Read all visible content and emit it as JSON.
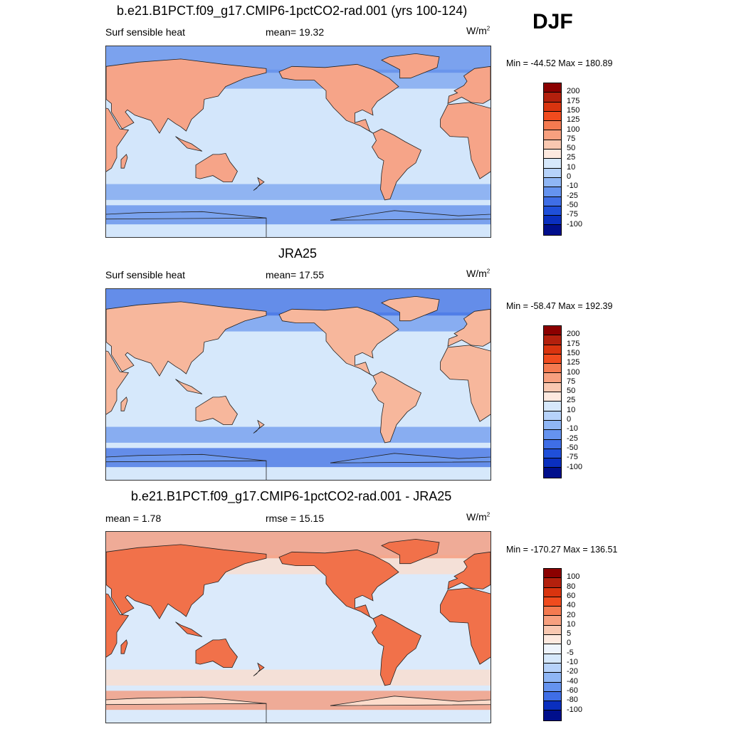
{
  "season": "DJF",
  "panels": [
    {
      "title": "b.e21.B1PCT.f09_g17.CMIP6-1pctCO2-rad.001 (yrs 100-124)",
      "left_label": "Surf sensible heat",
      "center_label": "mean=  19.32",
      "units": "W/m",
      "units_exp": "2",
      "minmax": "Min = -44.52 Max = 180.89",
      "colorbar": {
        "labels": [
          "200",
          "175",
          "150",
          "125",
          "100",
          "75",
          "50",
          "25",
          "10",
          "0",
          "-10",
          "-25",
          "-50",
          "-75",
          "-100"
        ],
        "colors": [
          "#8b0000",
          "#b3200d",
          "#d9340f",
          "#f04b1e",
          "#f47a50",
          "#f7a07f",
          "#f9c8b1",
          "#fde9df",
          "#d6e8fb",
          "#b6d2fa",
          "#8fb6f5",
          "#6593ef",
          "#3f6ee6",
          "#1f4fd9",
          "#0a2fbf",
          "#000f8c"
        ]
      },
      "map": {
        "land": "#f6a488",
        "ocean": "#d3e6fb",
        "band": "#7aa3ef",
        "polar": "#5d8bea"
      }
    },
    {
      "title": "JRA25",
      "left_label": "Surf sensible heat",
      "center_label": "mean=  17.55",
      "units": "W/m",
      "units_exp": "2",
      "minmax": "Min = -58.47 Max = 192.39",
      "colorbar": {
        "labels": [
          "200",
          "175",
          "150",
          "125",
          "100",
          "75",
          "50",
          "25",
          "10",
          "0",
          "-10",
          "-25",
          "-50",
          "-75",
          "-100"
        ],
        "colors": [
          "#8b0000",
          "#b3200d",
          "#d9340f",
          "#f04b1e",
          "#f47a50",
          "#f7a07f",
          "#f9c8b1",
          "#fde9df",
          "#d6e8fb",
          "#b6d2fa",
          "#8fb6f5",
          "#6593ef",
          "#3f6ee6",
          "#1f4fd9",
          "#0a2fbf",
          "#000f8c"
        ]
      },
      "map": {
        "land": "#f7b79c",
        "ocean": "#d6e8fb",
        "band": "#6e99ee",
        "polar": "#3d6fe3"
      }
    },
    {
      "title": "b.e21.B1PCT.f09_g17.CMIP6-1pctCO2-rad.001 - JRA25",
      "left_label": "mean =   1.78",
      "center_label": "rmse =  15.15",
      "units": "W/m",
      "units_exp": "2",
      "minmax": "Min = -170.27 Max = 136.51",
      "colorbar": {
        "labels": [
          "100",
          "80",
          "60",
          "40",
          "20",
          "10",
          "5",
          "0",
          "-5",
          "-10",
          "-20",
          "-40",
          "-60",
          "-80",
          "-100"
        ],
        "colors": [
          "#8b0000",
          "#b3200d",
          "#d9340f",
          "#f04b1e",
          "#f47a50",
          "#f7a07f",
          "#f9c8b1",
          "#fde9df",
          "#eef4fc",
          "#d6e8fb",
          "#b6d2fa",
          "#8fb6f5",
          "#6593ef",
          "#3f6ee6",
          "#0a2fbf",
          "#000f8c"
        ]
      },
      "map": {
        "land": "#f1714a",
        "ocean": "#dbeafb",
        "band": "#fcdccb",
        "polar": "#f69575"
      }
    }
  ]
}
